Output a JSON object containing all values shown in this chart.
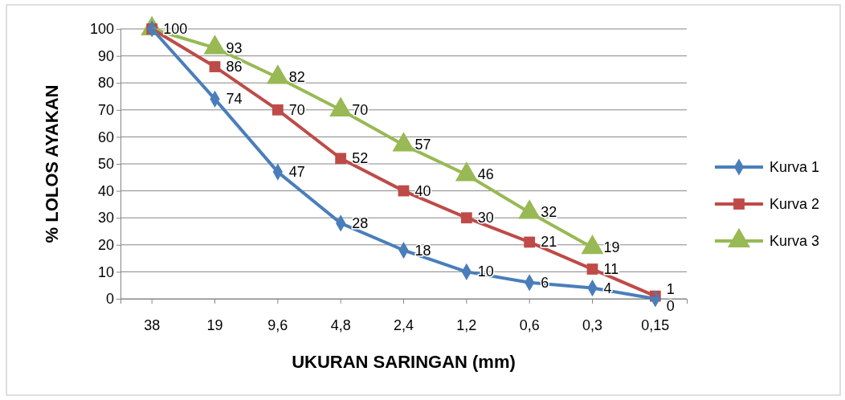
{
  "chart_data": {
    "type": "line",
    "xlabel": "UKURAN SARINGAN (mm)",
    "ylabel": "% LOLOS AYAKAN",
    "categories": [
      "38",
      "19",
      "9,6",
      "4,8",
      "2,4",
      "1,2",
      "0,6",
      "0,3",
      "0,15"
    ],
    "series": [
      {
        "name": "Kurva 1",
        "color": "#4a7ebb",
        "marker": "diamond",
        "values": [
          100,
          74,
          47,
          28,
          18,
          10,
          6,
          4,
          0
        ],
        "value_labels": [
          null,
          "74",
          "47",
          "28",
          "18",
          "10",
          "6",
          "4",
          "0"
        ]
      },
      {
        "name": "Kurva 2",
        "color": "#be4b48",
        "marker": "square",
        "values": [
          100,
          86,
          70,
          52,
          40,
          30,
          21,
          11,
          1
        ],
        "value_labels": [
          null,
          "86",
          "70",
          "52",
          "40",
          "30",
          "21",
          "11",
          "1"
        ]
      },
      {
        "name": "Kurva 3",
        "color": "#98b954",
        "marker": "triangle",
        "values": [
          100,
          93,
          82,
          70,
          57,
          46,
          32,
          19,
          null
        ],
        "value_labels": [
          "100",
          "93",
          "82",
          "70",
          "57",
          "46",
          "32",
          "19",
          null
        ]
      }
    ],
    "ylim": [
      0,
      100
    ],
    "yticks": [
      0,
      10,
      20,
      30,
      40,
      50,
      60,
      70,
      80,
      90,
      100
    ],
    "grid": "y",
    "legend": "right"
  }
}
